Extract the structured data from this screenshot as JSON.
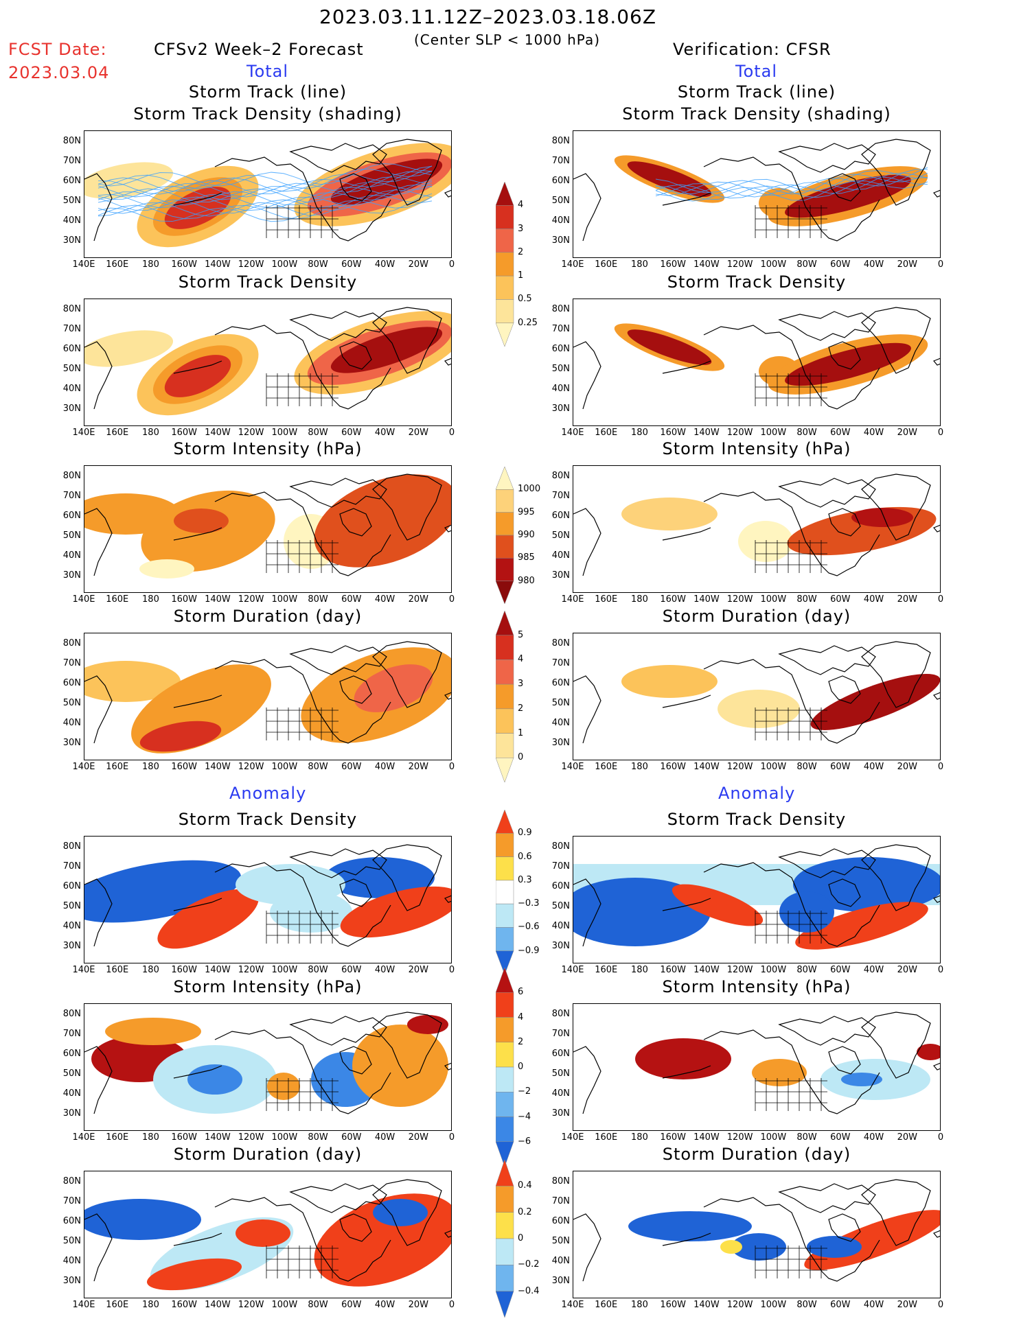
{
  "header": {
    "period": "2023.03.11.12Z–2023.03.18.06Z",
    "criterion": "(Center SLP < 1000 hPa)",
    "fcst_label": "FCST Date:",
    "fcst_date": "2023.03.04",
    "left_title": "CFSv2 Week–2 Forecast",
    "right_title": "Verification: CFSR",
    "total_label": "Total",
    "anomaly_label": "Anomaly"
  },
  "panel_titles": {
    "track_line": "Storm Track (line)",
    "track_shading": "Storm Track Density (shading)",
    "density": "Storm Track Density",
    "intensity": "Storm Intensity (hPa)",
    "duration": "Storm Duration (day)"
  },
  "axes": {
    "lat_ticks": [
      "80N",
      "70N",
      "60N",
      "50N",
      "40N",
      "30N"
    ],
    "lon_ticks": [
      "140E",
      "160E",
      "180",
      "160W",
      "140W",
      "120W",
      "100W",
      "80W",
      "60W",
      "40W",
      "20W",
      "0"
    ]
  },
  "colorbars": {
    "density_total": {
      "ticks": [
        "4",
        "3",
        "2",
        "1",
        "0.5",
        "0.25"
      ],
      "colors": [
        "#a50f0f",
        "#d7301f",
        "#ef6548",
        "#f59b2a",
        "#fcc35a",
        "#fde49a",
        "#fff5c0"
      ]
    },
    "intensity_total": {
      "ticks": [
        "1000",
        "995",
        "990",
        "985",
        "980"
      ],
      "colors": [
        "#fff5c0",
        "#fdd27a",
        "#f59b2a",
        "#e0501d",
        "#b31212",
        "#8a0b0b"
      ]
    },
    "duration_total": {
      "ticks": [
        "5",
        "4",
        "3",
        "2",
        "1",
        "0"
      ],
      "colors": [
        "#a50f0f",
        "#d7301f",
        "#ef6548",
        "#f59b2a",
        "#fcc35a",
        "#fde49a",
        "#fff5c0"
      ]
    },
    "density_anom": {
      "ticks": [
        "0.9",
        "0.6",
        "0.3",
        "−0.3",
        "−0.6",
        "−0.9"
      ],
      "colors": [
        "#f0401a",
        "#f59b2a",
        "#fde04a",
        "#ffffff",
        "#bde8f5",
        "#6fb5ee",
        "#1f63d6"
      ]
    },
    "intensity_anom": {
      "ticks": [
        "6",
        "4",
        "2",
        "0",
        "−2",
        "−4",
        "−6"
      ],
      "colors": [
        "#b51212",
        "#f0401a",
        "#f59b2a",
        "#fde04a",
        "#bde8f5",
        "#6fb5ee",
        "#3b87e6",
        "#1f63d6"
      ]
    },
    "duration_anom": {
      "ticks": [
        "0.4",
        "0.2",
        "0",
        "−0.2",
        "−0.4"
      ],
      "colors": [
        "#f0401a",
        "#f59b2a",
        "#fde04a",
        "#bde8f5",
        "#6fb5ee",
        "#1f63d6"
      ]
    }
  },
  "map_colors": {
    "land_line": "#000000",
    "track_line": "#3aa0ff"
  }
}
